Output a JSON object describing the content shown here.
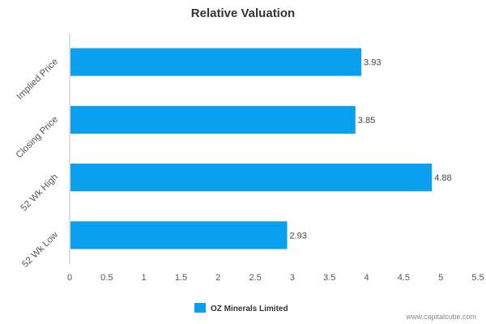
{
  "chart_data": {
    "type": "bar",
    "orientation": "horizontal",
    "title": "Relative Valuation",
    "categories": [
      "Implied Price",
      "Closing Price",
      "52 Wk High",
      "52 Wk Low"
    ],
    "series": [
      {
        "name": "OZ Minerals Limited",
        "values": [
          3.93,
          3.85,
          4.88,
          2.93
        ],
        "color": "#0aa0f0"
      }
    ],
    "xlim": [
      0,
      5.5
    ],
    "x_ticks": [
      "0",
      "0.5",
      "1",
      "1.5",
      "2",
      "2.5",
      "3",
      "3.5",
      "4",
      "4.5",
      "5",
      "5.5"
    ],
    "data_labels": [
      "3.93",
      "3.85",
      "4.88",
      "2.93"
    ],
    "grid": false,
    "legend_position": "bottom-center"
  },
  "credit": "www.capitalcube.com"
}
